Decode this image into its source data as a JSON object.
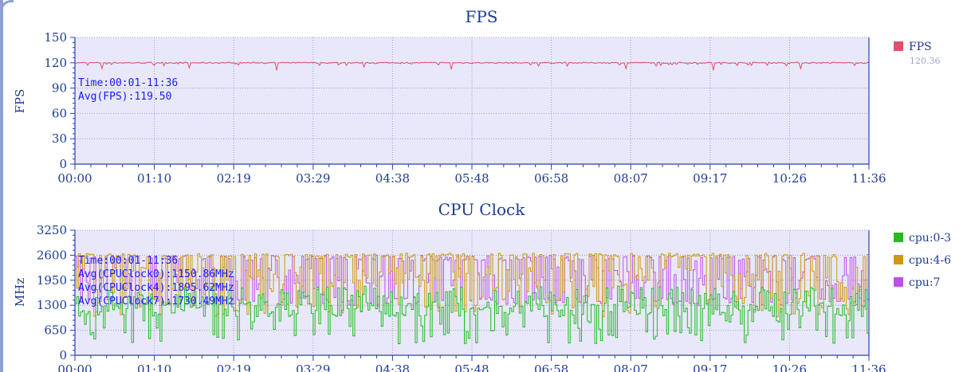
{
  "colors": {
    "plot_bg": "#e8e8fa",
    "axis": "#2b3fb0",
    "grid": "#9a9ad0",
    "fps_line": "#e0506a",
    "cpu_0_3": "#22bb22",
    "cpu_4_6": "#cc9a10",
    "cpu_7": "#c050e8",
    "text": "#1f3b8f",
    "annotation": "#1a1aff"
  },
  "chart_data": [
    {
      "type": "line",
      "title": "FPS",
      "xlabel": "",
      "ylabel": "FPS",
      "ylim": [
        0,
        150
      ],
      "yticks": [
        0,
        30,
        60,
        90,
        120,
        150
      ],
      "xticks": [
        "00:00",
        "01:10",
        "02:19",
        "03:29",
        "04:38",
        "05:48",
        "06:58",
        "08:07",
        "09:17",
        "10:26",
        "11:36"
      ],
      "grid": true,
      "legend_position": "right",
      "series": [
        {
          "name": "FPS",
          "color": "#e0506a",
          "legend_value": "120.36",
          "baseline": 120,
          "min_dips": [
            113,
            114,
            111,
            115,
            112,
            116,
            113,
            111
          ]
        }
      ],
      "annotations": [
        "Time:00:01-11:36",
        "Avg(FPS):119.50"
      ]
    },
    {
      "type": "line",
      "title": "CPU Clock",
      "xlabel": "",
      "ylabel": "MHz",
      "ylim": [
        0,
        3250
      ],
      "yticks": [
        0,
        650,
        1300,
        1950,
        2600,
        3250
      ],
      "xticks": [
        "00:00",
        "01:10",
        "02:19",
        "03:29",
        "04:38",
        "05:48",
        "06:58",
        "08:07",
        "09:17",
        "10:26",
        "11:36"
      ],
      "grid": true,
      "legend_position": "right",
      "series": [
        {
          "name": "cpu:0-3",
          "color": "#22bb22",
          "avg": 1150.86,
          "low": 300,
          "high": 1800
        },
        {
          "name": "cpu:4-6",
          "color": "#cc9a10",
          "avg": 1895.62,
          "low": 1000,
          "high": 2650
        },
        {
          "name": "cpu:7",
          "color": "#c050e8",
          "avg": 1730.49,
          "low": 1300,
          "high": 2600
        }
      ],
      "annotations": [
        "Time:00:01-11:36",
        "Avg(CPUClock0):1150.86MHz",
        "Avg(CPUClock4):1895.62MHz",
        "Avg(CPUClock7):1730.49MHz"
      ]
    }
  ]
}
